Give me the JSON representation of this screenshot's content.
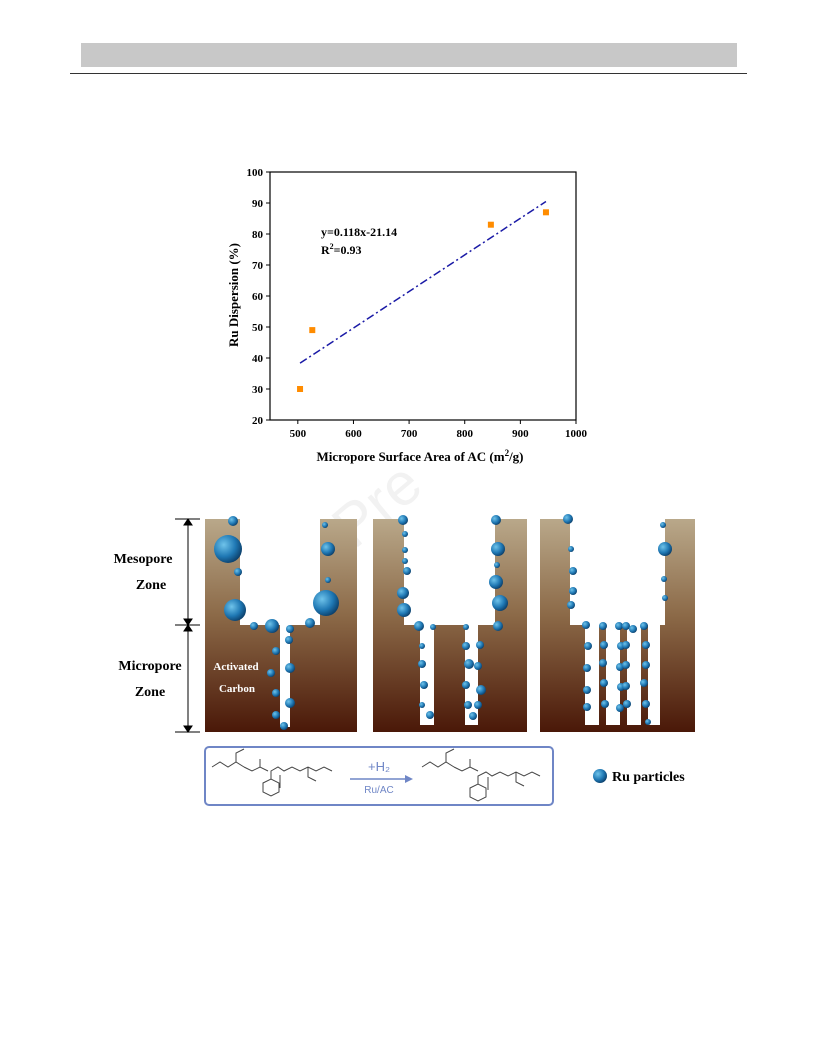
{
  "header": {
    "title": ""
  },
  "chart_data": {
    "type": "scatter",
    "xlabel": "Micropore Surface Area of AC (m²/g)",
    "xlabel_main": "Micropore Surface Area of AC (m",
    "xlabel_sup": "2",
    "xlabel_tail": "/g)",
    "ylabel": "Ru Dispersion (%)",
    "xlim": [
      450,
      1000
    ],
    "ylim": [
      20,
      100
    ],
    "xticks": [
      500,
      600,
      700,
      800,
      900,
      1000
    ],
    "yticks": [
      20,
      30,
      40,
      50,
      60,
      70,
      80,
      90,
      100
    ],
    "x": [
      504,
      526,
      847,
      946
    ],
    "y": [
      30,
      49,
      83,
      87
    ],
    "fit": {
      "slope": 0.118,
      "intercept": -21.14,
      "x_range": [
        504,
        946
      ]
    },
    "equation": "y=0.118x-21.14",
    "r2_prefix": "R",
    "r2_sup": "2",
    "r2_tail": "=0.93",
    "marker_color": "#ff8c00",
    "fit_color": "#1a1aa6"
  },
  "schematic": {
    "labels": {
      "mesopore": [
        "Mesopore",
        "Zone"
      ],
      "micropore": [
        "Micropore",
        "Zone"
      ],
      "activated": [
        "Activated",
        "Carbon"
      ]
    },
    "reaction": {
      "reagent": "+H₂",
      "catalyst": "Ru/AC"
    },
    "legend": "Ru particles",
    "colors": {
      "carbon_top": "#b9a88a",
      "carbon_bottom": "#4a1808",
      "particle": "#1f78b4",
      "box_border": "#6f86c6"
    }
  }
}
